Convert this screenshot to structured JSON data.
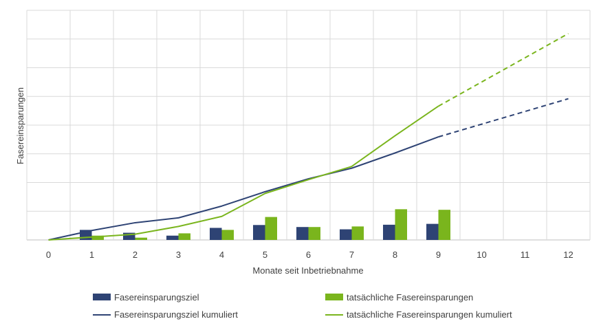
{
  "chart_data": {
    "type": "bar",
    "xlabel": "Monate seit Inbetriebnahme",
    "ylabel": "Fasereinsparungen",
    "categories": [
      "0",
      "1",
      "2",
      "3",
      "4",
      "5",
      "6",
      "7",
      "8",
      "9",
      "10",
      "11",
      "12"
    ],
    "ylim": [
      0,
      8
    ],
    "grid": true,
    "y_tick_labels_shown": false,
    "legend_position": "bottom",
    "series": [
      {
        "name": "Fasereinsparungsziel",
        "kind": "bar",
        "color": "#2e4374",
        "x": [
          1,
          2,
          3,
          4,
          5,
          6,
          7,
          8,
          9
        ],
        "values": [
          0.35,
          0.25,
          0.15,
          0.42,
          0.52,
          0.45,
          0.37,
          0.53,
          0.56
        ]
      },
      {
        "name": "tatsächliche Fasereinsparungen",
        "kind": "bar",
        "color": "#7ab51d",
        "x": [
          1,
          2,
          3,
          4,
          5,
          6,
          7,
          8,
          9
        ],
        "values": [
          0.15,
          0.08,
          0.23,
          0.35,
          0.8,
          0.45,
          0.47,
          1.07,
          1.05
        ]
      },
      {
        "name": "Fasereinsparungsziel kumuliert",
        "kind": "line",
        "color": "#2e4374",
        "x": [
          0,
          1,
          2,
          3,
          4,
          5,
          6,
          7,
          8,
          9
        ],
        "values": [
          0,
          0.33,
          0.6,
          0.77,
          1.18,
          1.68,
          2.13,
          2.5,
          3.03,
          3.59
        ],
        "dashed_continuation": {
          "x": [
            9,
            12
          ],
          "values": [
            3.59,
            4.92
          ]
        }
      },
      {
        "name": "tatsächliche Fasereinsparungen kumuliert",
        "kind": "line",
        "color": "#7ab51d",
        "x": [
          0,
          1,
          2,
          3,
          4,
          5,
          6,
          7,
          8,
          9
        ],
        "values": [
          0,
          0.1,
          0.2,
          0.47,
          0.82,
          1.62,
          2.1,
          2.56,
          3.63,
          4.66
        ],
        "dashed_continuation": {
          "x": [
            9,
            12
          ],
          "values": [
            4.66,
            7.19
          ]
        }
      }
    ]
  }
}
